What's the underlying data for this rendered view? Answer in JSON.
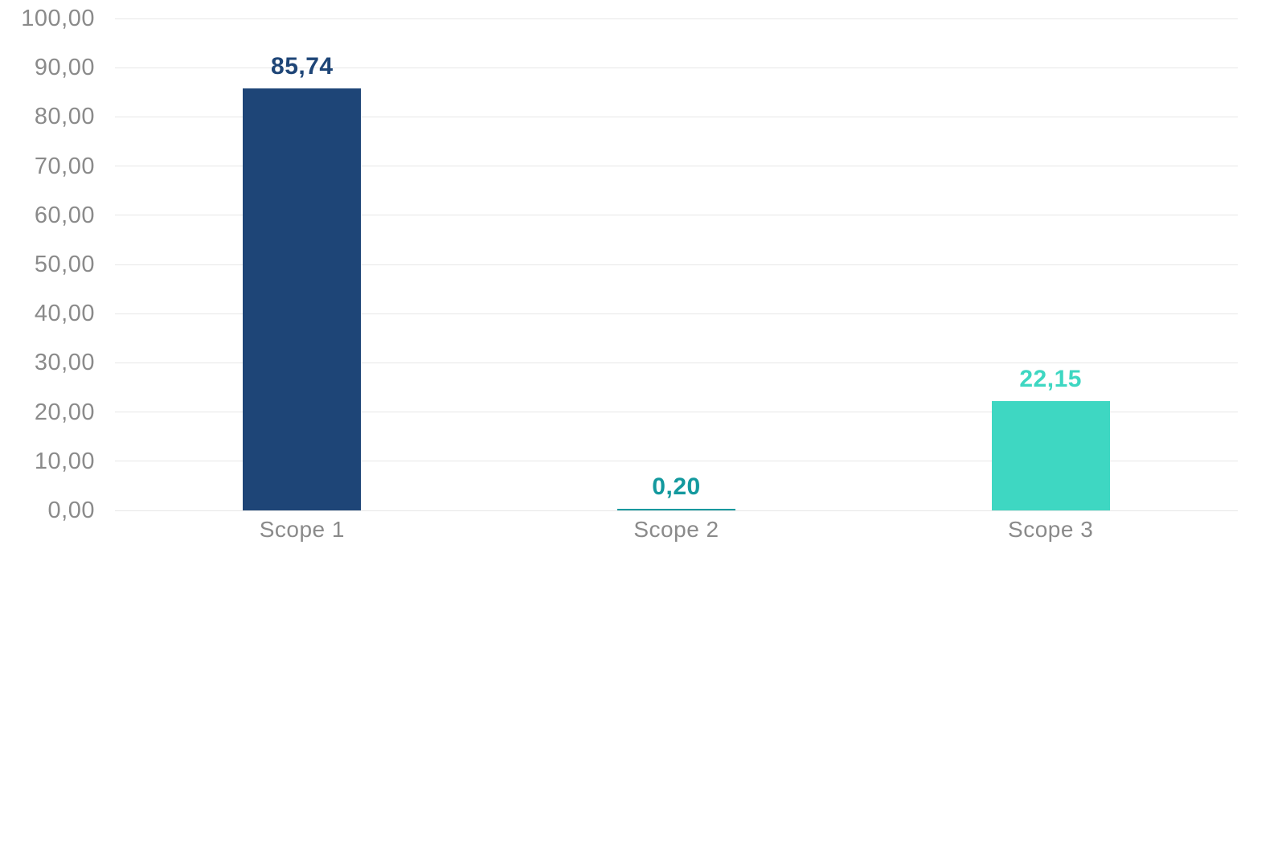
{
  "chart_data": {
    "type": "bar",
    "title": "",
    "xlabel": "",
    "ylabel": "",
    "categories": [
      "Scope 1",
      "Scope 2",
      "Scope 3"
    ],
    "values": [
      85.74,
      0.2,
      22.15
    ],
    "value_labels": [
      "85,74",
      "0,20",
      "22,15"
    ],
    "series_colors": [
      "#1E4577",
      "#13999E",
      "#3ED7C2"
    ],
    "ylim": [
      0,
      100
    ],
    "ytick_step": 10,
    "ytick_labels": [
      "0,00",
      "10,00",
      "20,00",
      "30,00",
      "40,00",
      "50,00",
      "60,00",
      "70,00",
      "80,00",
      "90,00",
      "100,00"
    ],
    "grid": true,
    "legend_position": "none",
    "decimal_separator": ",",
    "colors": {
      "axis_text": "#8A8A8A",
      "gridline": "#E7E7E7",
      "background": "#FFFFFF"
    }
  }
}
